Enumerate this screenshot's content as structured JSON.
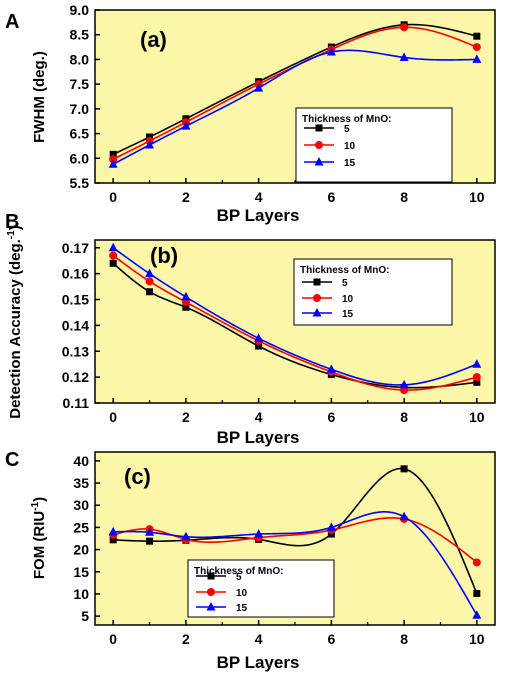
{
  "panel_letters": [
    "A",
    "B",
    "C"
  ],
  "chart_data": [
    {
      "type": "line",
      "panel": "A",
      "tag": "(a)",
      "xlabel": "BP Layers",
      "ylabel": "FWHM (deg.)",
      "x": [
        0,
        1,
        2,
        4,
        6,
        8,
        10
      ],
      "xlim": [
        -0.5,
        10.5
      ],
      "ylim": [
        5.5,
        9.0
      ],
      "xticks": [
        0,
        2,
        4,
        6,
        8,
        10
      ],
      "yticks": [
        "5.5",
        "6.0",
        "6.5",
        "7.0",
        "7.5",
        "8.0",
        "8.5",
        "9.0"
      ],
      "background": "#fbf6a8",
      "legend": {
        "title": "Thickness of MnO:",
        "placement": "right"
      },
      "series": [
        {
          "name": "5",
          "color": "#000000",
          "marker": "square",
          "values": [
            6.08,
            6.43,
            6.8,
            7.55,
            8.25,
            8.7,
            8.47
          ]
        },
        {
          "name": "10",
          "color": "#ff0000",
          "marker": "circle",
          "values": [
            5.98,
            6.35,
            6.73,
            7.5,
            8.2,
            8.65,
            8.25
          ]
        },
        {
          "name": "15",
          "color": "#0000ff",
          "marker": "triangle",
          "values": [
            5.88,
            6.27,
            6.65,
            7.42,
            8.15,
            8.04,
            8.0
          ]
        }
      ]
    },
    {
      "type": "line",
      "panel": "B",
      "tag": "(b)",
      "xlabel": "BP Layers",
      "ylabel": "Detection Accuracy (deg.",
      "ylabel_sup": "-1",
      "ylabel_end": ")",
      "x": [
        0,
        1,
        2,
        4,
        6,
        8,
        10
      ],
      "xlim": [
        -0.5,
        10.5
      ],
      "ylim": [
        0.11,
        0.173
      ],
      "xticks": [
        0,
        2,
        4,
        6,
        8,
        10
      ],
      "yticks": [
        "0.11",
        "0.12",
        "0.13",
        "0.14",
        "0.15",
        "0.16",
        "0.17"
      ],
      "background": "#fbf6a8",
      "legend": {
        "title": "Thickness of MnO:",
        "placement": "right"
      },
      "series": [
        {
          "name": "5",
          "color": "#000000",
          "marker": "square",
          "values": [
            0.164,
            0.153,
            0.147,
            0.132,
            0.121,
            0.116,
            0.118
          ]
        },
        {
          "name": "10",
          "color": "#ff0000",
          "marker": "circle",
          "values": [
            0.167,
            0.157,
            0.149,
            0.134,
            0.122,
            0.115,
            0.12
          ]
        },
        {
          "name": "15",
          "color": "#0000ff",
          "marker": "triangle",
          "values": [
            0.17,
            0.16,
            0.151,
            0.135,
            0.123,
            0.117,
            0.125
          ]
        }
      ]
    },
    {
      "type": "line",
      "panel": "C",
      "tag": "(c)",
      "xlabel": "BP Layers",
      "ylabel": "FOM (RIU",
      "ylabel_sup": "-1",
      "ylabel_end": ")",
      "x": [
        0,
        1,
        2,
        4,
        6,
        8,
        10
      ],
      "xlim": [
        -0.5,
        10.5
      ],
      "ylim": [
        3,
        42
      ],
      "xticks": [
        0,
        2,
        4,
        6,
        8,
        10
      ],
      "yticks": [
        "5",
        "10",
        "15",
        "20",
        "25",
        "30",
        "35",
        "40"
      ],
      "background": "#fbf6a8",
      "legend": {
        "title": "Thickness of MnO:",
        "placement": "bottom-left"
      },
      "series": [
        {
          "name": "5",
          "color": "#000000",
          "marker": "square",
          "values": [
            22.2,
            21.9,
            22.1,
            22.3,
            23.5,
            38.2,
            10.1
          ]
        },
        {
          "name": "10",
          "color": "#ff0000",
          "marker": "circle",
          "values": [
            23.3,
            24.6,
            22.3,
            22.7,
            24.4,
            26.9,
            17.1
          ]
        },
        {
          "name": "15",
          "color": "#0000ff",
          "marker": "triangle",
          "values": [
            24.0,
            23.9,
            22.9,
            23.5,
            25.0,
            27.4,
            5.2
          ]
        }
      ]
    }
  ]
}
